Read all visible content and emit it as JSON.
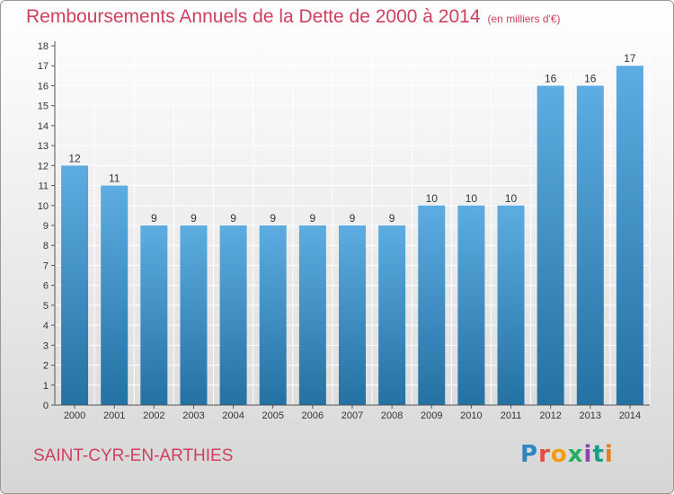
{
  "header": {
    "title": "Remboursements Annuels de la Dette de 2000 à 2014",
    "unit": "(en milliers d'€)"
  },
  "commune": "SAINT-CYR-EN-ARTHIES",
  "logo": {
    "text": "Proxiti",
    "colors": [
      "#2e86c1",
      "#e74c3c",
      "#f39c12",
      "#27ae60",
      "#8e44ad",
      "#16a085",
      "#e67e22"
    ]
  },
  "colors": {
    "accent": "#d0405e",
    "bar_light": "#5dade2",
    "bar_dark": "#2471a3",
    "grid": "#ffffff"
  },
  "chart_data": {
    "type": "bar",
    "categories": [
      "2000",
      "2001",
      "2002",
      "2003",
      "2004",
      "2005",
      "2006",
      "2007",
      "2008",
      "2009",
      "2010",
      "2011",
      "2012",
      "2013",
      "2014"
    ],
    "values": [
      12,
      11,
      9,
      9,
      9,
      9,
      9,
      9,
      9,
      10,
      10,
      10,
      16,
      16,
      17
    ],
    "data_labels": [
      "12",
      "11",
      "9",
      "9",
      "9",
      "9",
      "9",
      "9",
      "9",
      "10",
      "10",
      "10",
      "16",
      "16",
      "17"
    ],
    "title": "Remboursements Annuels de la Dette de 2000 à 2014",
    "xlabel": "",
    "ylabel": "",
    "ylim": [
      0,
      18
    ],
    "yticks": [
      0,
      1,
      2,
      3,
      4,
      5,
      6,
      7,
      8,
      9,
      10,
      11,
      12,
      13,
      14,
      15,
      16,
      17,
      18
    ],
    "grid": true
  }
}
